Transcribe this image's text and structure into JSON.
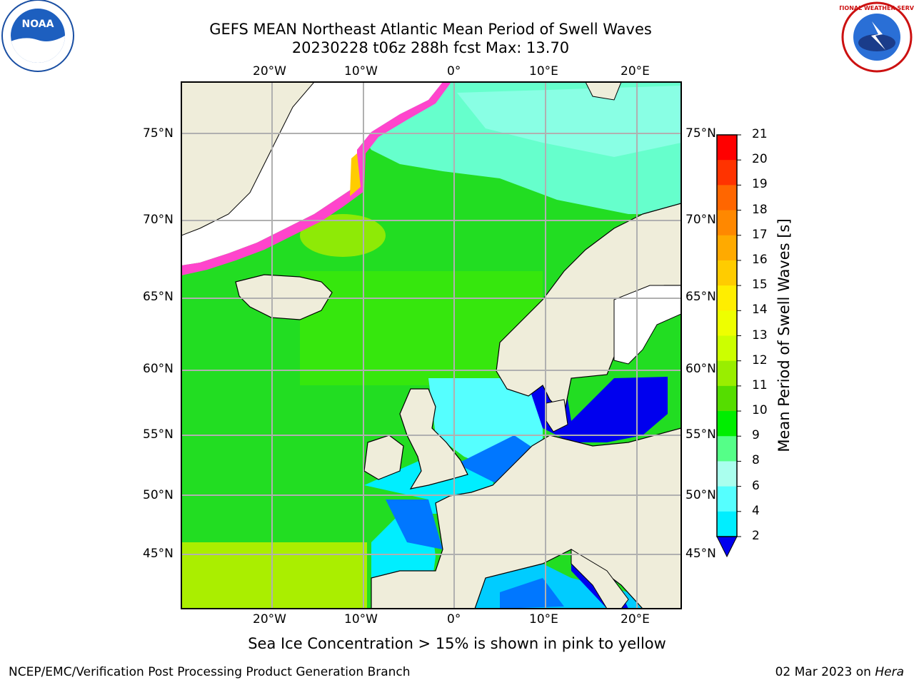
{
  "title": {
    "line1": "GEFS MEAN Northeast Atlantic Mean Period of Swell Waves",
    "line2": "20230228 t06z 288h fcst   Max: 13.70"
  },
  "map": {
    "lon_top_labels": [
      "20°W",
      "10°W",
      "0°",
      "10°E",
      "20°E"
    ],
    "lon_bottom_labels": [
      "20°W",
      "10°W",
      "0°",
      "10°E",
      "20°E"
    ],
    "lat_left_labels": [
      "75°N",
      "70°N",
      "65°N",
      "60°N",
      "55°N",
      "50°N",
      "45°N"
    ],
    "lat_right_labels": [
      "75°N",
      "70°N",
      "65°N",
      "60°N",
      "55°N",
      "50°N",
      "45°N"
    ],
    "colors": {
      "land": "#efedda",
      "ice_free_white": "#ffffff",
      "grid": "#b0b0b0"
    }
  },
  "colorbar": {
    "label": "Mean Period of Swell Waves [s]",
    "ticks": [
      "21",
      "20",
      "19",
      "18",
      "17",
      "16",
      "15",
      "14",
      "13",
      "12",
      "11",
      "10",
      "9",
      "8",
      "6",
      "4",
      "2"
    ],
    "colors": [
      "#ff0000",
      "#ff3300",
      "#ff6600",
      "#ff8800",
      "#ffaa00",
      "#ffcc00",
      "#ffee00",
      "#eeff00",
      "#ccff00",
      "#99ee00",
      "#55dd00",
      "#00ee00",
      "#55ff88",
      "#aaffee",
      "#55ffff",
      "#00eeff",
      "#00ccff",
      "#0077ff",
      "#0000ee"
    ],
    "extend": "min"
  },
  "note": "Sea Ice Concentration > 15% is shown in pink to yellow",
  "credit_left": "NCEP/EMC/Verification Post Processing Product Generation Branch",
  "credit_right_date": "02 Mar 2023 on ",
  "credit_right_host": "Hera",
  "logos": {
    "noaa_text": "NOAA",
    "nws_text": "NATIONAL WEATHER SERVICE"
  }
}
